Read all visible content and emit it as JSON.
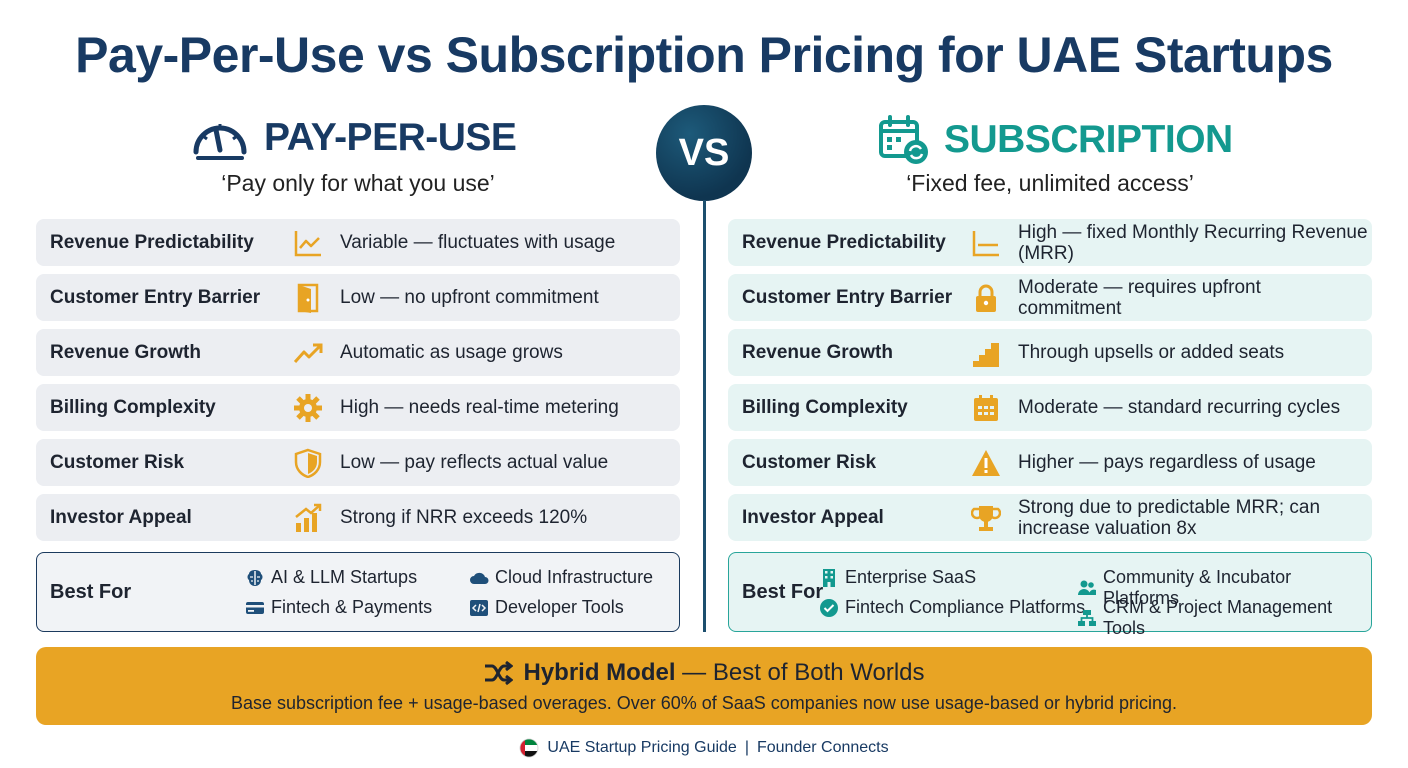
{
  "title": "Pay-Per-Use vs Subscription Pricing for UAE Startups",
  "vs_label": "VS",
  "colors": {
    "navy": "#183a63",
    "teal": "#13998f",
    "amber": "#e8a424",
    "icon_orange": "#e8a424"
  },
  "left": {
    "heading": "PAY-PER-USE",
    "heading_icon": "speedometer-icon",
    "tagline": "‘Pay only for what you use’",
    "rows": [
      {
        "label": "Revenue Predictability",
        "icon": "line-chart-icon",
        "value": "Variable — fluctuates with usage"
      },
      {
        "label": "Customer Entry Barrier",
        "icon": "door-icon",
        "value": "Low — no upfront commitment"
      },
      {
        "label": "Revenue Growth",
        "icon": "trend-up-icon",
        "value": "Automatic as usage grows"
      },
      {
        "label": "Billing Complexity",
        "icon": "gear-icon",
        "value": "High — needs real-time metering"
      },
      {
        "label": "Customer Risk",
        "icon": "shield-icon",
        "value": "Low — pay reflects actual value"
      },
      {
        "label": "Investor Appeal",
        "icon": "bar-chart-up-icon",
        "value": "Strong if NRR exceeds 120%"
      }
    ],
    "best_for": {
      "label": "Best For",
      "items": [
        {
          "text": "AI & LLM Startups",
          "icon": "brain-icon"
        },
        {
          "text": "Cloud Infrastructure",
          "icon": "cloud-icon"
        },
        {
          "text": "Fintech & Payments",
          "icon": "card-icon"
        },
        {
          "text": "Developer Tools",
          "icon": "code-icon"
        }
      ]
    }
  },
  "right": {
    "heading": "SUBSCRIPTION",
    "heading_icon": "calendar-refresh-icon",
    "tagline": "‘Fixed fee, unlimited access’",
    "rows": [
      {
        "label": "Revenue Predictability",
        "icon": "flat-chart-icon",
        "value": "High — fixed Monthly Recurring Revenue (MRR)"
      },
      {
        "label": "Customer Entry Barrier",
        "icon": "lock-icon",
        "value": "Moderate — requires upfront commitment"
      },
      {
        "label": "Revenue Growth",
        "icon": "stairs-icon",
        "value": "Through upsells or added seats"
      },
      {
        "label": "Billing Complexity",
        "icon": "calendar-icon",
        "value": "Moderate — standard recurring cycles"
      },
      {
        "label": "Customer Risk",
        "icon": "warning-icon",
        "value": "Higher — pays regardless of usage"
      },
      {
        "label": "Investor Appeal",
        "icon": "trophy-icon",
        "value": "Strong due to predictable MRR; can increase valuation 8x"
      }
    ],
    "best_for": {
      "label": "Best For",
      "items": [
        {
          "text": "Enterprise SaaS",
          "icon": "building-icon"
        },
        {
          "text": "Community & Incubator Platforms",
          "icon": "people-icon"
        },
        {
          "text": "Fintech Compliance Platforms",
          "icon": "check-circle-icon"
        },
        {
          "text": "CRM & Project Management Tools",
          "icon": "network-icon"
        }
      ]
    }
  },
  "hybrid": {
    "icon": "shuffle-icon",
    "title": "Hybrid Model",
    "title_suffix": "— Best of Both Worlds",
    "description": "Base subscription fee + usage-based overages. Over 60% of SaaS companies now use usage-based or hybrid pricing."
  },
  "footer": {
    "flag_icon": "uae-flag-icon",
    "left_text": "UAE Startup Pricing Guide",
    "separator": "|",
    "right_text": "Founder Connects"
  }
}
